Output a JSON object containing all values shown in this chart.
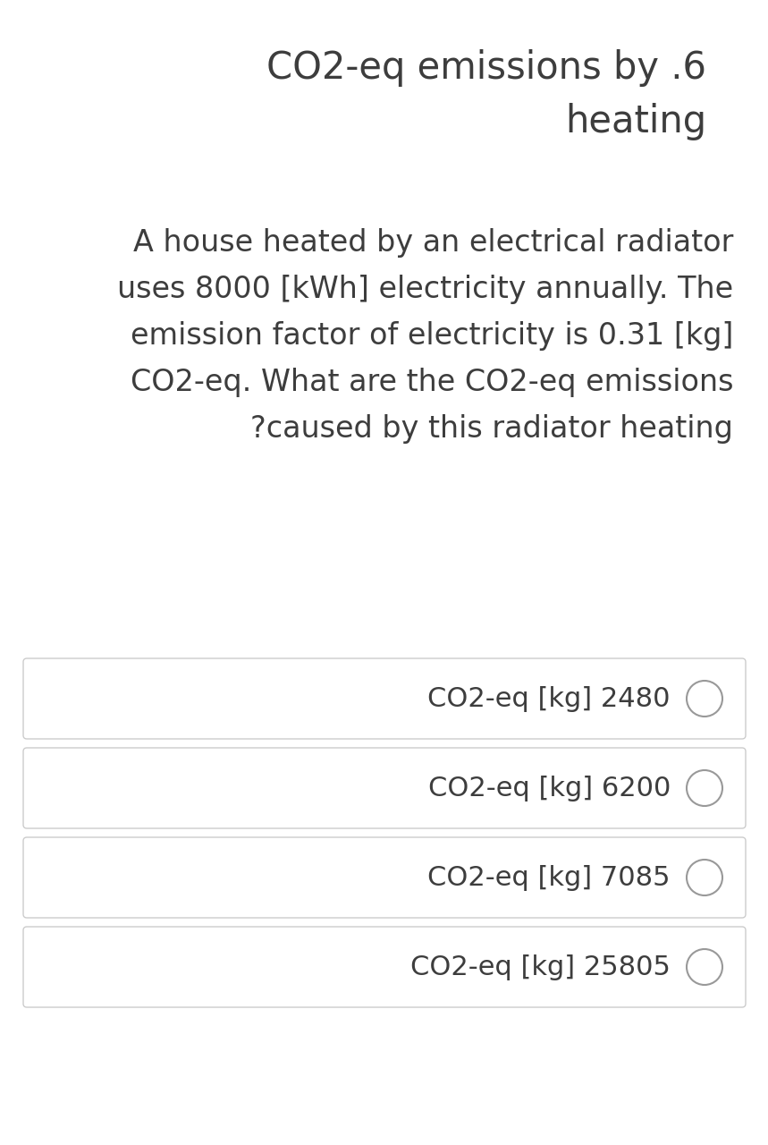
{
  "title_line1": "CO2-eq emissions by .6",
  "title_line2": "heating",
  "question_lines": [
    "A house heated by an electrical radiator",
    "uses 8000 [kWh] electricity annually. The",
    "emission factor of electricity is 0.31 [kg]",
    "CO2-eq. What are the CO2-eq emissions",
    "?caused by this radiator heating"
  ],
  "options": [
    "CO2-eq [kg] 2480",
    "CO2-eq [kg] 6200",
    "CO2-eq [kg] 7085",
    "CO2-eq [kg] 25805"
  ],
  "bg_color": "#ffffff",
  "text_color": "#3d3d3d",
  "title_fontsize": 30,
  "question_fontsize": 24,
  "option_fontsize": 22,
  "box_bg_color": "#ffffff",
  "box_edge_color": "#cccccc",
  "circle_edge_color": "#999999",
  "fig_width": 8.59,
  "fig_height": 12.8,
  "dpi": 100
}
